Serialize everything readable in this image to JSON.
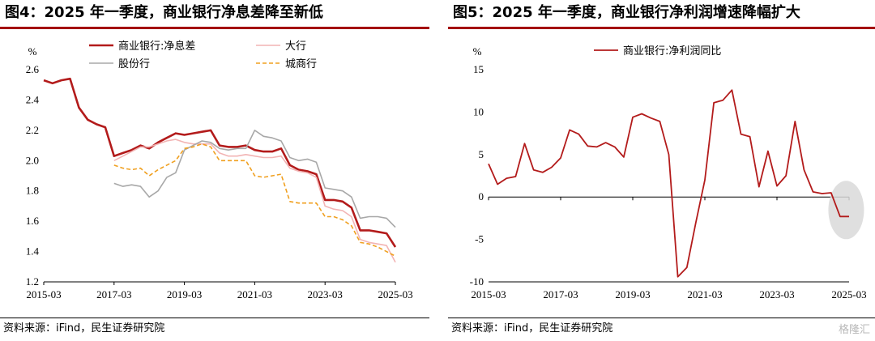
{
  "figures": [
    {
      "title": "图4：2025 年一季度，商业银行净息差降至新低",
      "source": "资料来源：iFind，民生证券研究院"
    },
    {
      "title": "图5：2025 年一季度，商业银行净利润增速降幅扩大",
      "source": "资料来源：iFind，民生证券研究院"
    }
  ],
  "watermark": "格隆汇",
  "chart_data": [
    {
      "type": "line",
      "title": "图4：2025 年一季度，商业银行净息差降至新低",
      "ylabel": "%",
      "ylim": [
        1.2,
        2.6
      ],
      "yticks": [
        "1.2",
        "1.4",
        "1.6",
        "1.8",
        "2.0",
        "2.2",
        "2.4",
        "2.6"
      ],
      "xlim": [
        "2015-03",
        "2025-03"
      ],
      "xticks": [
        "2015-03",
        "2017-03",
        "2019-03",
        "2021-03",
        "2023-03",
        "2025-03"
      ],
      "legend": "top-center",
      "series": [
        {
          "name": "商业银行:净息差",
          "color": "#b31b1b",
          "width": 2.6,
          "dash": "",
          "x": [
            "2015-03",
            "2015-06",
            "2015-09",
            "2015-12",
            "2016-03",
            "2016-06",
            "2016-09",
            "2016-12",
            "2017-03",
            "2017-06",
            "2017-09",
            "2017-12",
            "2018-03",
            "2018-06",
            "2018-09",
            "2018-12",
            "2019-03",
            "2019-06",
            "2019-09",
            "2019-12",
            "2020-03",
            "2020-06",
            "2020-09",
            "2020-12",
            "2021-03",
            "2021-06",
            "2021-09",
            "2021-12",
            "2022-03",
            "2022-06",
            "2022-09",
            "2022-12",
            "2023-03",
            "2023-06",
            "2023-09",
            "2023-12",
            "2024-03",
            "2024-06",
            "2024-09",
            "2024-12",
            "2025-03"
          ],
          "values": [
            2.53,
            2.51,
            2.53,
            2.54,
            2.35,
            2.27,
            2.24,
            2.22,
            2.03,
            2.05,
            2.07,
            2.1,
            2.08,
            2.12,
            2.15,
            2.18,
            2.17,
            2.18,
            2.19,
            2.2,
            2.1,
            2.09,
            2.09,
            2.1,
            2.07,
            2.06,
            2.06,
            2.08,
            1.97,
            1.94,
            1.93,
            1.91,
            1.74,
            1.74,
            1.73,
            1.69,
            1.54,
            1.54,
            1.53,
            1.52,
            1.43
          ]
        },
        {
          "name": "大行",
          "color": "#f2b4b4",
          "width": 1.6,
          "dash": "",
          "x": [
            "2017-03",
            "2017-06",
            "2017-09",
            "2017-12",
            "2018-03",
            "2018-06",
            "2018-09",
            "2018-12",
            "2019-03",
            "2019-06",
            "2019-09",
            "2019-12",
            "2020-03",
            "2020-06",
            "2020-09",
            "2020-12",
            "2021-03",
            "2021-06",
            "2021-09",
            "2021-12",
            "2022-03",
            "2022-06",
            "2022-09",
            "2022-12",
            "2023-03",
            "2023-06",
            "2023-09",
            "2023-12",
            "2024-03",
            "2024-06",
            "2024-09",
            "2024-12",
            "2025-03"
          ],
          "values": [
            2.0,
            2.03,
            2.06,
            2.09,
            2.09,
            2.11,
            2.13,
            2.14,
            2.12,
            2.11,
            2.11,
            2.11,
            2.05,
            2.03,
            2.03,
            2.04,
            2.03,
            2.02,
            2.02,
            2.03,
            1.95,
            1.93,
            1.92,
            1.89,
            1.7,
            1.68,
            1.67,
            1.63,
            1.48,
            1.46,
            1.45,
            1.44,
            1.33
          ]
        },
        {
          "name": "股份行",
          "color": "#a8a8a8",
          "width": 1.6,
          "dash": "",
          "x": [
            "2017-03",
            "2017-06",
            "2017-09",
            "2017-12",
            "2018-03",
            "2018-06",
            "2018-09",
            "2018-12",
            "2019-03",
            "2019-06",
            "2019-09",
            "2019-12",
            "2020-03",
            "2020-06",
            "2020-09",
            "2020-12",
            "2021-03",
            "2021-06",
            "2021-09",
            "2021-12",
            "2022-03",
            "2022-06",
            "2022-09",
            "2022-12",
            "2023-03",
            "2023-06",
            "2023-09",
            "2023-12",
            "2024-03",
            "2024-06",
            "2024-09",
            "2024-12",
            "2025-03"
          ],
          "values": [
            1.85,
            1.83,
            1.84,
            1.83,
            1.76,
            1.8,
            1.89,
            1.92,
            2.07,
            2.1,
            2.13,
            2.12,
            2.08,
            2.07,
            2.08,
            2.08,
            2.2,
            2.16,
            2.15,
            2.13,
            2.02,
            2.0,
            2.01,
            1.99,
            1.82,
            1.81,
            1.8,
            1.76,
            1.62,
            1.63,
            1.63,
            1.62,
            1.56
          ]
        },
        {
          "name": "城商行",
          "color": "#f0a020",
          "width": 1.6,
          "dash": "5,3",
          "x": [
            "2017-03",
            "2017-06",
            "2017-09",
            "2017-12",
            "2018-03",
            "2018-06",
            "2018-09",
            "2018-12",
            "2019-03",
            "2019-06",
            "2019-09",
            "2019-12",
            "2020-03",
            "2020-06",
            "2020-09",
            "2020-12",
            "2021-03",
            "2021-06",
            "2021-09",
            "2021-12",
            "2022-03",
            "2022-06",
            "2022-09",
            "2022-12",
            "2023-03",
            "2023-06",
            "2023-09",
            "2023-12",
            "2024-03",
            "2024-06",
            "2024-09",
            "2024-12",
            "2025-03"
          ],
          "values": [
            1.97,
            1.95,
            1.94,
            1.95,
            1.9,
            1.94,
            1.97,
            2.0,
            2.08,
            2.09,
            2.11,
            2.09,
            2.0,
            2.0,
            2.0,
            2.0,
            1.9,
            1.89,
            1.9,
            1.91,
            1.73,
            1.72,
            1.72,
            1.72,
            1.63,
            1.63,
            1.61,
            1.57,
            1.46,
            1.45,
            1.43,
            1.4,
            1.37
          ]
        }
      ]
    },
    {
      "type": "line",
      "title": "图5：2025 年一季度，商业银行净利润增速降幅扩大",
      "ylabel": "%",
      "ylim": [
        -10,
        15
      ],
      "yticks": [
        "-10",
        "-5",
        "0",
        "5",
        "10",
        "15"
      ],
      "xlim": [
        "2015-03",
        "2025-03"
      ],
      "xticks": [
        "2015-03",
        "2017-03",
        "2019-03",
        "2021-03",
        "2023-03",
        "2025-03"
      ],
      "legend": "top-center",
      "highlight": "2024-12 – 2025-03",
      "series": [
        {
          "name": "商业银行:净利润同比",
          "color": "#b31b1b",
          "width": 1.8,
          "dash": "",
          "x": [
            "2015-03",
            "2015-06",
            "2015-09",
            "2015-12",
            "2016-03",
            "2016-06",
            "2016-09",
            "2016-12",
            "2017-03",
            "2017-06",
            "2017-09",
            "2017-12",
            "2018-03",
            "2018-06",
            "2018-09",
            "2018-12",
            "2019-03",
            "2019-06",
            "2019-09",
            "2019-12",
            "2020-03",
            "2020-06",
            "2020-09",
            "2020-12",
            "2021-03",
            "2021-06",
            "2021-09",
            "2021-12",
            "2022-03",
            "2022-06",
            "2022-09",
            "2022-12",
            "2023-03",
            "2023-06",
            "2023-09",
            "2023-12",
            "2024-03",
            "2024-06",
            "2024-09",
            "2024-12",
            "2025-03"
          ],
          "values": [
            3.9,
            1.5,
            2.2,
            2.4,
            6.3,
            3.2,
            2.9,
            3.5,
            4.6,
            7.9,
            7.4,
            6.0,
            5.9,
            6.4,
            5.9,
            4.7,
            9.4,
            9.8,
            9.3,
            8.9,
            5.0,
            -9.4,
            -8.3,
            -3.0,
            2.0,
            11.1,
            11.4,
            12.6,
            7.4,
            7.1,
            1.2,
            5.4,
            1.3,
            2.5,
            8.9,
            3.2,
            0.6,
            0.4,
            0.5,
            -2.3,
            -2.3
          ]
        }
      ]
    }
  ]
}
